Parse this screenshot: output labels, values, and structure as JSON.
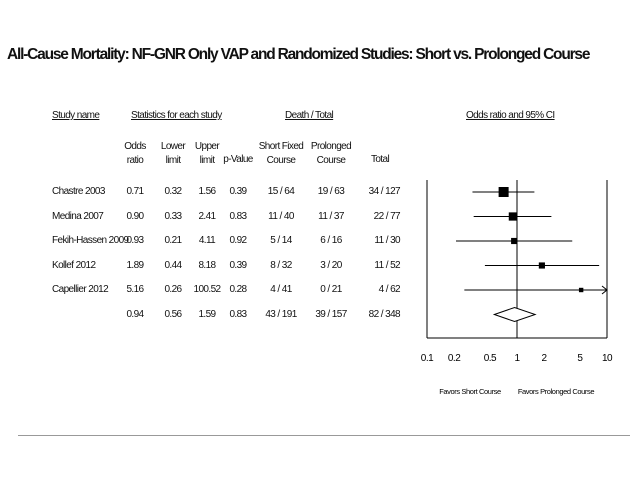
{
  "title": "All-Cause Mortality: NF-GNR Only VAP and Randomized Studies: Short vs. Prolonged Course",
  "headers": {
    "study_name": "Study name",
    "stats_group": "Statistics for each study",
    "death_group": "Death / Total",
    "or_group": "Odds ratio and 95% CI",
    "odds": [
      "Odds",
      "ratio"
    ],
    "lower": [
      "Lower",
      "limit"
    ],
    "upper": [
      "Upper",
      "limit"
    ],
    "pvalue": "p-Value",
    "short": [
      "Short Fixed",
      "Course"
    ],
    "prolonged": [
      "Prolonged",
      "Course"
    ],
    "total": "Total"
  },
  "chart_data": {
    "type": "forest",
    "x_scale": "log",
    "xlim": [
      0.1,
      10
    ],
    "x_ticks": [
      "0.1",
      "0.2",
      "0.5",
      "1",
      "2",
      "5",
      "10"
    ],
    "favors_left": "Favors Short Course",
    "favors_right": "Favors Prolonged Course",
    "rows": [
      {
        "study": "Chastre 2003",
        "or": "0.71",
        "lower": "0.32",
        "upper": "1.56",
        "p": "0.39",
        "short": "15 / 64",
        "prolonged": "19 / 63",
        "total": "34 / 127",
        "or_v": 0.71,
        "lo_v": 0.32,
        "hi_v": 1.56,
        "weight": 1.0
      },
      {
        "study": "Medina 2007",
        "or": "0.90",
        "lower": "0.33",
        "upper": "2.41",
        "p": "0.83",
        "short": "11 / 40",
        "prolonged": "11 / 37",
        "total": "22 / 77",
        "or_v": 0.9,
        "lo_v": 0.33,
        "hi_v": 2.41,
        "weight": 0.75
      },
      {
        "study": "Fekih-Hassen 2009",
        "or": "0.93",
        "lower": "0.21",
        "upper": "4.11",
        "p": "0.92",
        "short": "5 / 14",
        "prolonged": "6 / 16",
        "total": "11 / 30",
        "or_v": 0.93,
        "lo_v": 0.21,
        "hi_v": 4.11,
        "weight": 0.45
      },
      {
        "study": "Kollef 2012",
        "or": "1.89",
        "lower": "0.44",
        "upper": "8.18",
        "p": "0.39",
        "short": "8 / 32",
        "prolonged": "3 / 20",
        "total": "11 / 52",
        "or_v": 1.89,
        "lo_v": 0.44,
        "hi_v": 8.18,
        "weight": 0.45
      },
      {
        "study": "Capellier 2012",
        "or": "5.16",
        "lower": "0.26",
        "upper": "100.52",
        "p": "0.28",
        "short": "4 / 41",
        "prolonged": "0 / 21",
        "total": "4 / 62",
        "or_v": 5.16,
        "lo_v": 0.26,
        "hi_v": 100.52,
        "weight": 0.2
      }
    ],
    "summary": {
      "or": "0.94",
      "lower": "0.56",
      "upper": "1.59",
      "p": "0.83",
      "short": "43 / 191",
      "prolonged": "39 / 157",
      "total": "82 / 348",
      "or_v": 0.94,
      "lo_v": 0.56,
      "hi_v": 1.59
    }
  }
}
